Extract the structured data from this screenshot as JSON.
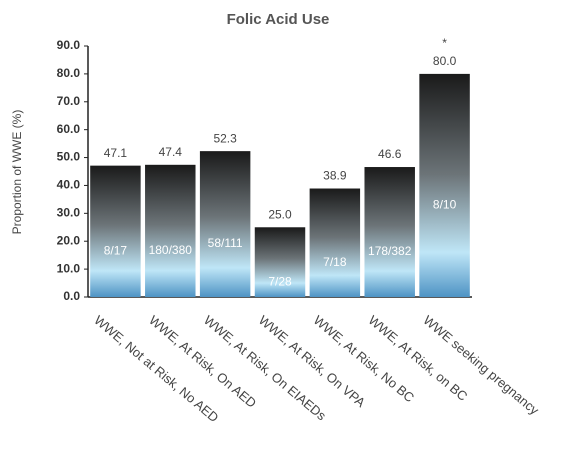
{
  "chart_data": {
    "type": "bar",
    "title": "Folic Acid Use",
    "y_label": "Proportion of WWE (%)",
    "categories": [
      "WWE, Not at Risk, No AED",
      "WWE, At Risk, On AED",
      "WWE, At Risk, On EIAEDs",
      "WWE, At Risk, On VPA",
      "WWE, At Risk, No BC",
      "WWE, At Risk, on BC",
      "WWE seeking pregnancy"
    ],
    "values": [
      47.1,
      47.4,
      52.3,
      25.0,
      38.9,
      46.6,
      80.0
    ],
    "value_labels": [
      "47.1",
      "47.4",
      "52.3",
      "25.0",
      "38.9",
      "46.6",
      "80.0"
    ],
    "counts": [
      "8/17",
      "180/380",
      "58/111",
      "7/28",
      "7/18",
      "178/382",
      "8/10"
    ],
    "annotation": "*",
    "ylim": [
      0,
      90
    ],
    "yticks": [
      {
        "value": 0,
        "label": "0.0"
      },
      {
        "value": 10,
        "label": "10.0"
      },
      {
        "value": 20,
        "label": "20.0"
      },
      {
        "value": 30,
        "label": "30.0"
      },
      {
        "value": 40,
        "label": "40.0"
      },
      {
        "value": 50,
        "label": "50.0"
      },
      {
        "value": 60,
        "label": "60.0"
      },
      {
        "value": 70,
        "label": "70.0"
      },
      {
        "value": 80,
        "label": "80.0"
      },
      {
        "value": 90,
        "label": "90.0"
      }
    ]
  }
}
